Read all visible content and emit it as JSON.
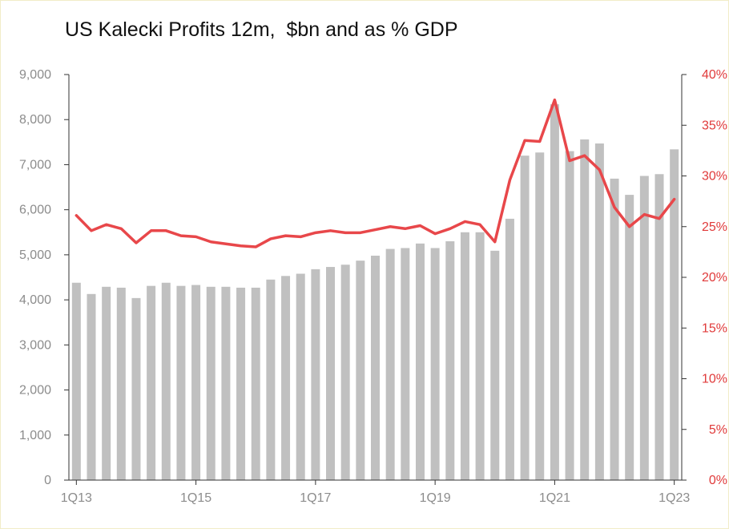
{
  "chart_data": {
    "type": "bar",
    "title": "US Kalecki Profits 12m,  $bn and as % GDP",
    "categories": [
      "1Q13",
      "2Q13",
      "3Q13",
      "4Q13",
      "1Q14",
      "2Q14",
      "3Q14",
      "4Q14",
      "1Q15",
      "2Q15",
      "3Q15",
      "4Q15",
      "1Q16",
      "2Q16",
      "3Q16",
      "4Q16",
      "1Q17",
      "2Q17",
      "3Q17",
      "4Q17",
      "1Q18",
      "2Q18",
      "3Q18",
      "4Q18",
      "1Q19",
      "2Q19",
      "3Q19",
      "4Q19",
      "1Q20",
      "2Q20",
      "3Q20",
      "4Q20",
      "1Q21",
      "2Q21",
      "3Q21",
      "4Q21",
      "1Q22",
      "2Q22",
      "3Q22",
      "4Q22",
      "1Q23"
    ],
    "x_tick_labels": [
      "1Q13",
      "1Q15",
      "1Q17",
      "1Q19",
      "1Q21",
      "1Q23"
    ],
    "series": [
      {
        "axis": "left",
        "type": "bar",
        "color": "#c0c0c0",
        "values": [
          4380,
          4130,
          4290,
          4270,
          4040,
          4310,
          4380,
          4310,
          4330,
          4290,
          4290,
          4270,
          4270,
          4450,
          4530,
          4580,
          4680,
          4730,
          4780,
          4870,
          4980,
          5130,
          5150,
          5250,
          5150,
          5300,
          5500,
          5500,
          5090,
          5800,
          7200,
          7270,
          8340,
          7300,
          7560,
          7470,
          6690,
          6330,
          6750,
          6790,
          7340
        ]
      },
      {
        "axis": "right",
        "type": "line",
        "color": "#e8474a",
        "values": [
          26.1,
          24.6,
          25.2,
          24.8,
          23.4,
          24.6,
          24.6,
          24.1,
          24.0,
          23.5,
          23.3,
          23.1,
          23.0,
          23.8,
          24.1,
          24.0,
          24.4,
          24.6,
          24.4,
          24.4,
          24.7,
          25.0,
          24.8,
          25.1,
          24.3,
          24.8,
          25.5,
          25.2,
          23.5,
          29.6,
          33.5,
          33.4,
          37.5,
          31.5,
          32.0,
          30.6,
          26.9,
          25.0,
          26.2,
          25.8,
          27.7
        ]
      }
    ],
    "y_left": {
      "min": 0,
      "max": 9000,
      "step": 1000,
      "tick_labels": [
        "0",
        "1,000",
        "2,000",
        "3,000",
        "4,000",
        "5,000",
        "6,000",
        "7,000",
        "8,000",
        "9,000"
      ]
    },
    "y_right": {
      "min": 0,
      "max": 40,
      "step": 5,
      "tick_labels": [
        "0%",
        "5%",
        "10%",
        "15%",
        "20%",
        "25%",
        "30%",
        "35%",
        "40%"
      ],
      "color": "#e03a3a"
    },
    "axis_color": "#333333",
    "grid": false,
    "legend": "none"
  }
}
